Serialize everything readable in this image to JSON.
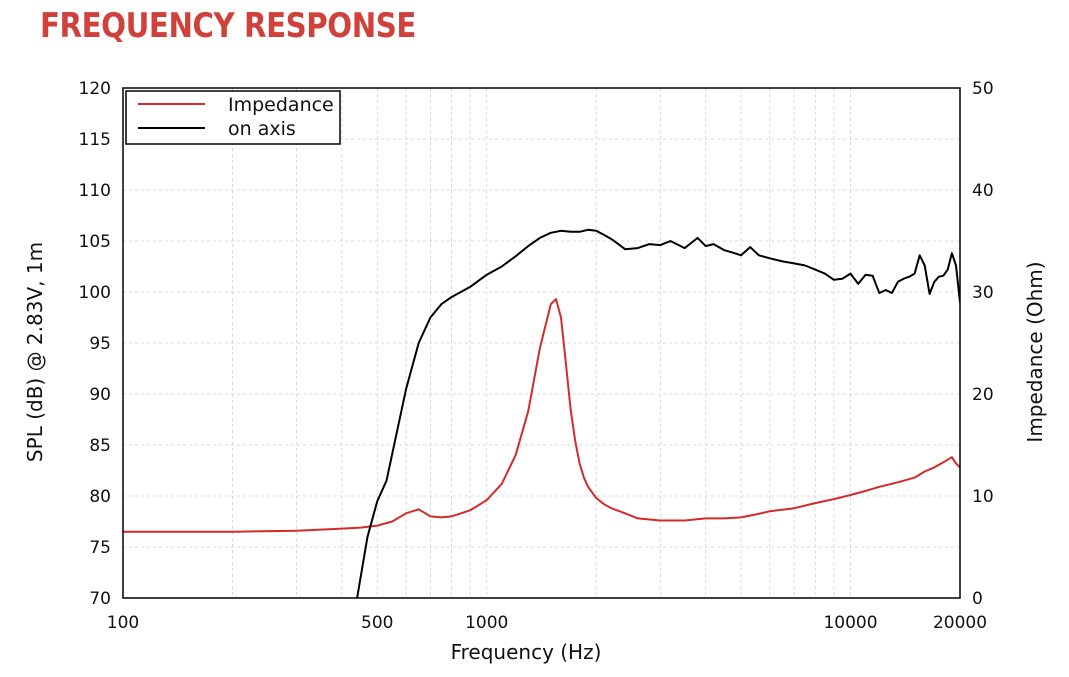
{
  "page": {
    "title": "FREQUENCY RESPONSE",
    "title_color": "#d0413b"
  },
  "chart_data": {
    "type": "line",
    "xlabel": "Frequency (Hz)",
    "ylabel": "SPL (dB) @ 2.83V, 1m",
    "y2label": "Impedance (Ohm)",
    "x_scale": "log",
    "xlim": [
      100,
      20000
    ],
    "ylim": [
      70,
      120
    ],
    "y2lim": [
      0,
      50
    ],
    "x_ticks": [
      100,
      500,
      1000,
      10000,
      20000
    ],
    "x_tick_labels": [
      "100",
      "500",
      "1000",
      "10000",
      "20000"
    ],
    "y_ticks": [
      70,
      75,
      80,
      85,
      90,
      95,
      100,
      105,
      110,
      115,
      120
    ],
    "y2_ticks": [
      0,
      10,
      20,
      30,
      40,
      50
    ],
    "grid": true,
    "legend_position": "top-left",
    "series": [
      {
        "name": "Impedance",
        "axis": "right",
        "color": "#d42a2a",
        "x": [
          100,
          200,
          300,
          400,
          450,
          500,
          550,
          600,
          650,
          700,
          750,
          800,
          900,
          1000,
          1100,
          1200,
          1300,
          1400,
          1500,
          1550,
          1600,
          1650,
          1700,
          1750,
          1800,
          1850,
          1900,
          2000,
          2100,
          2200,
          2400,
          2600,
          3000,
          3500,
          4000,
          4500,
          5000,
          5500,
          6000,
          7000,
          8000,
          9000,
          10000,
          11000,
          12000,
          13000,
          14000,
          15000,
          16000,
          17000,
          18000,
          19000,
          19500,
          20000
        ],
        "values": [
          6.5,
          6.5,
          6.6,
          6.8,
          6.9,
          7.1,
          7.5,
          8.3,
          8.7,
          8.0,
          7.9,
          8.0,
          8.6,
          9.6,
          11.2,
          14.0,
          18.3,
          24.5,
          28.8,
          29.3,
          27.5,
          23.0,
          18.5,
          15.4,
          13.2,
          11.8,
          10.9,
          9.8,
          9.2,
          8.8,
          8.3,
          7.8,
          7.6,
          7.6,
          7.8,
          7.8,
          7.9,
          8.2,
          8.5,
          8.8,
          9.3,
          9.7,
          10.1,
          10.5,
          10.9,
          11.2,
          11.5,
          11.8,
          12.4,
          12.8,
          13.3,
          13.8,
          13.2,
          12.8
        ]
      },
      {
        "name": "on axis",
        "axis": "left",
        "color": "#000000",
        "x": [
          440,
          470,
          500,
          530,
          560,
          600,
          650,
          700,
          750,
          800,
          900,
          1000,
          1100,
          1200,
          1300,
          1400,
          1500,
          1600,
          1700,
          1800,
          1900,
          2000,
          2100,
          2200,
          2300,
          2400,
          2600,
          2800,
          3000,
          3200,
          3500,
          3800,
          4000,
          4200,
          4500,
          4800,
          5000,
          5300,
          5600,
          6000,
          6500,
          7000,
          7500,
          8000,
          8500,
          9000,
          9500,
          10000,
          10500,
          11000,
          11500,
          12000,
          12500,
          13000,
          13500,
          14000,
          14500,
          15000,
          15500,
          16000,
          16500,
          17000,
          17500,
          18000,
          18500,
          19000,
          19500,
          20000
        ],
        "values": [
          70,
          76,
          79.5,
          81.5,
          85.5,
          90.5,
          95,
          97.5,
          98.8,
          99.5,
          100.5,
          101.7,
          102.5,
          103.5,
          104.5,
          105.3,
          105.8,
          106.0,
          105.9,
          105.9,
          106.1,
          106.0,
          105.6,
          105.2,
          104.7,
          104.2,
          104.3,
          104.7,
          104.6,
          105.0,
          104.3,
          105.3,
          104.5,
          104.7,
          104.1,
          103.8,
          103.6,
          104.4,
          103.6,
          103.3,
          103.0,
          102.8,
          102.6,
          102.2,
          101.8,
          101.2,
          101.3,
          101.8,
          100.8,
          101.7,
          101.6,
          99.9,
          100.2,
          99.9,
          101.0,
          101.3,
          101.5,
          101.8,
          103.6,
          102.6,
          99.8,
          101.0,
          101.5,
          101.6,
          102.2,
          103.8,
          102.6,
          99.0
        ]
      }
    ]
  }
}
